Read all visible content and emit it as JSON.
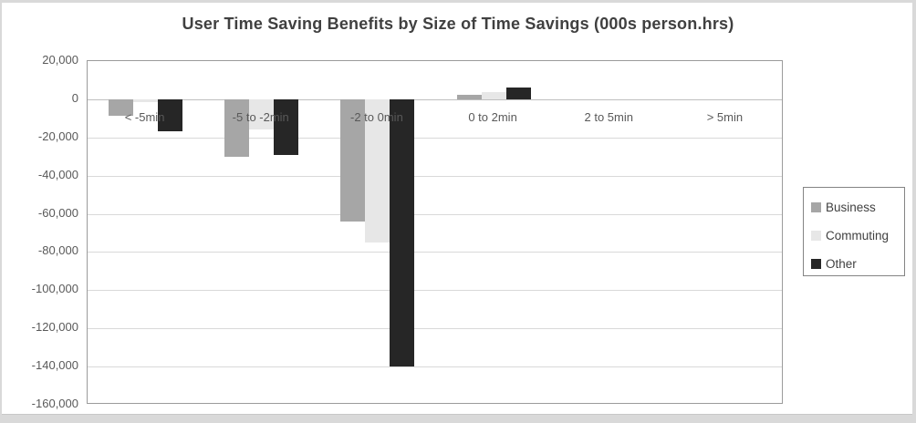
{
  "chart_data": {
    "type": "bar",
    "title": "User Time Saving Benefits by Size of Time Savings (000s person.hrs)",
    "categories": [
      "< -5min",
      "-5 to -2min",
      "-2 to 0min",
      "0 to 2min",
      "2 to 5min",
      "> 5min"
    ],
    "series": [
      {
        "name": "Business",
        "color": "#a6a6a6",
        "values": [
          -8500,
          -30000,
          -64000,
          2500,
          0,
          0
        ]
      },
      {
        "name": "Commuting",
        "color": "#e7e7e7",
        "values": [
          -1500,
          -16000,
          -75000,
          4000,
          0,
          0
        ]
      },
      {
        "name": "Other",
        "color": "#262626",
        "values": [
          -17000,
          -29000,
          -140000,
          6000,
          0,
          0
        ]
      }
    ],
    "xlabel": "",
    "ylabel": "",
    "ylim": [
      -160000,
      20000
    ],
    "ytick_step": 20000,
    "yticks": [
      {
        "value": 20000,
        "label": "20,000"
      },
      {
        "value": 0,
        "label": "0"
      },
      {
        "value": -20000,
        "label": "-20,000"
      },
      {
        "value": -40000,
        "label": "-40,000"
      },
      {
        "value": -60000,
        "label": "-60,000"
      },
      {
        "value": -80000,
        "label": "-80,000"
      },
      {
        "value": -100000,
        "label": "-100,000"
      },
      {
        "value": -120000,
        "label": "-120,000"
      },
      {
        "value": -140000,
        "label": "-140,000"
      },
      {
        "value": -160000,
        "label": "-160,000"
      }
    ],
    "grid": true,
    "legend_position": "right",
    "legend_entries": [
      "Business",
      "Commuting",
      "Other"
    ]
  },
  "colors": {
    "frame": "#d9d9d9",
    "plot_border": "#9b9b9b",
    "gridline": "#d9d9d9",
    "zero_line": "#bfbfbf",
    "title_text": "#404040",
    "axis_text": "#595959",
    "legend_border": "#848484"
  }
}
